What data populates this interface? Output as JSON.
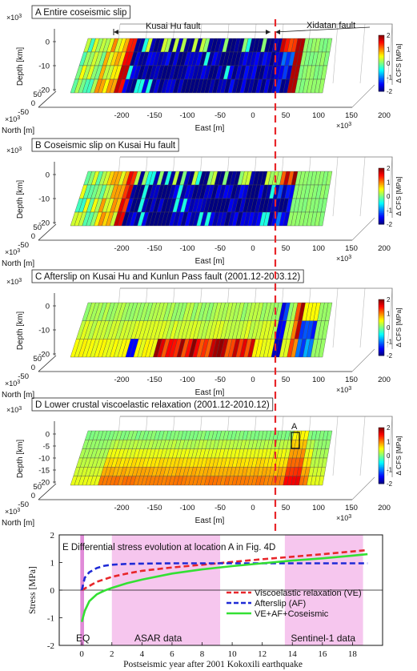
{
  "panels": [
    {
      "title": "A Entire coseismic slip",
      "fault_labels": [
        "Kusai Hu fault",
        "Xidatan fault"
      ],
      "exp": "×10",
      "exp_pow": "3",
      "depth_label": "Depth [km]",
      "north_label": "North [m]",
      "east_label": "East [m]",
      "depth_ticks": [
        "0",
        "-10",
        "-20"
      ],
      "north_ticks": [
        "50",
        "0",
        "-50"
      ],
      "east_ticks": [
        "-200",
        "-150",
        "-100",
        "-50",
        "0",
        "50",
        "100",
        "150",
        "200"
      ],
      "cb_label": "Δ CFS [MPa]",
      "cb_ticks": [
        "2",
        "1",
        "0",
        "-1",
        "-2"
      ],
      "pattern": "A"
    },
    {
      "title": "B Coseismic slip on Kusai Hu fault",
      "exp": "×10",
      "exp_pow": "3",
      "depth_label": "Depth [km]",
      "north_label": "North [m]",
      "east_label": "East [m]",
      "depth_ticks": [
        "0",
        "-10",
        "-20"
      ],
      "north_ticks": [
        "50",
        "0",
        "-50"
      ],
      "east_ticks": [
        "-200",
        "-150",
        "-100",
        "-50",
        "0",
        "50",
        "100",
        "150",
        "200"
      ],
      "cb_label": "Δ CFS [MPa]",
      "cb_ticks": [
        "2",
        "1",
        "0",
        "-1",
        "-2"
      ],
      "pattern": "B"
    },
    {
      "title": "C Afterslip on Kusai Hu and Kunlun Pass fault (2001.12-2003.12)",
      "exp": "×10",
      "exp_pow": "3",
      "depth_label": "Depth [km]",
      "north_label": "North [m]",
      "east_label": "East [m]",
      "depth_ticks": [
        "0",
        "-10",
        "-20"
      ],
      "north_ticks": [
        "50",
        "0",
        "-50"
      ],
      "east_ticks": [
        "-200",
        "-150",
        "-100",
        "-50",
        "0",
        "50",
        "100",
        "150",
        "200"
      ],
      "cb_label": "Δ CFS [MPa]",
      "cb_ticks": [
        "2",
        "1",
        "0",
        "-1",
        "-2"
      ],
      "pattern": "C"
    },
    {
      "title": "D Lower crustal viscoelastic relaxation (2001.12-2010.12)",
      "exp": "×10",
      "exp_pow": "3",
      "depth_label": "Depth [km]",
      "north_label": "North [m]",
      "east_label": "East [m]",
      "depth_ticks": [
        "0",
        "-5",
        "-10",
        "-15",
        "-20"
      ],
      "north_ticks": [
        "50",
        "0",
        "-50"
      ],
      "east_ticks": [
        "-200",
        "-150",
        "-100",
        "-50",
        "0",
        "50",
        "100",
        "150",
        "200"
      ],
      "cb_label": "Δ CFS [MPa]",
      "cb_ticks": [
        "2",
        "1",
        "0",
        "-1",
        "-2"
      ],
      "marker": "A",
      "pattern": "D"
    }
  ],
  "colors": {
    "fault_line": "#e8262a",
    "viscoelastic": "#e8262a",
    "afterslip": "#1f2ad6",
    "combined": "#33e033",
    "data_shade": "#f6c6ee",
    "eq_shade": "#e08ad8"
  },
  "chart_data": {
    "type": "line",
    "title": "E Differential stress evolution at location A in Fig. 4D",
    "xlabel": "Postseismic year after 2001 Kokoxili earthquake",
    "ylabel": "Stress [MPa]",
    "xlim": [
      -1.5,
      20
    ],
    "ylim": [
      -2,
      2
    ],
    "x_ticks": [
      "0",
      "2",
      "4",
      "6",
      "8",
      "10",
      "12",
      "14",
      "16",
      "18"
    ],
    "y_ticks": [
      "2",
      "1",
      "0",
      "-1",
      "-2"
    ],
    "legend_position": "right",
    "series": [
      {
        "name": "Viscoelastic relaxation (VE)",
        "style": "dashed",
        "x": [
          0,
          0.5,
          1,
          2,
          3,
          4,
          6,
          8,
          10,
          12,
          14,
          16,
          18,
          19
        ],
        "y": [
          0,
          0.15,
          0.3,
          0.48,
          0.6,
          0.7,
          0.82,
          0.92,
          1.02,
          1.12,
          1.21,
          1.3,
          1.4,
          1.45
        ]
      },
      {
        "name": "Afterslip (AF)",
        "style": "dashed",
        "x": [
          0,
          0.2,
          0.5,
          1,
          1.5,
          2,
          3,
          4,
          6,
          8,
          10,
          12,
          14,
          16,
          18,
          19
        ],
        "y": [
          0,
          0.45,
          0.65,
          0.8,
          0.88,
          0.92,
          0.95,
          0.96,
          0.97,
          0.97,
          0.97,
          0.97,
          0.97,
          0.97,
          0.97,
          0.97
        ]
      },
      {
        "name": "VE+AF+Coseismic",
        "style": "solid",
        "x": [
          0,
          0.2,
          0.5,
          1,
          1.5,
          2,
          3,
          4,
          6,
          8,
          10,
          12,
          14,
          16,
          18,
          19
        ],
        "y": [
          -1.15,
          -0.75,
          -0.4,
          -0.15,
          -0.02,
          0.08,
          0.25,
          0.38,
          0.6,
          0.75,
          0.87,
          0.97,
          1.07,
          1.15,
          1.25,
          1.3
        ]
      }
    ],
    "regions": [
      {
        "label": "EQ",
        "x": [
          -0.1,
          0.15
        ]
      },
      {
        "label": "ASAR data",
        "x": [
          2,
          9.2
        ]
      },
      {
        "label": "Sentinel-1 data",
        "x": [
          13.5,
          18.7
        ]
      }
    ]
  }
}
